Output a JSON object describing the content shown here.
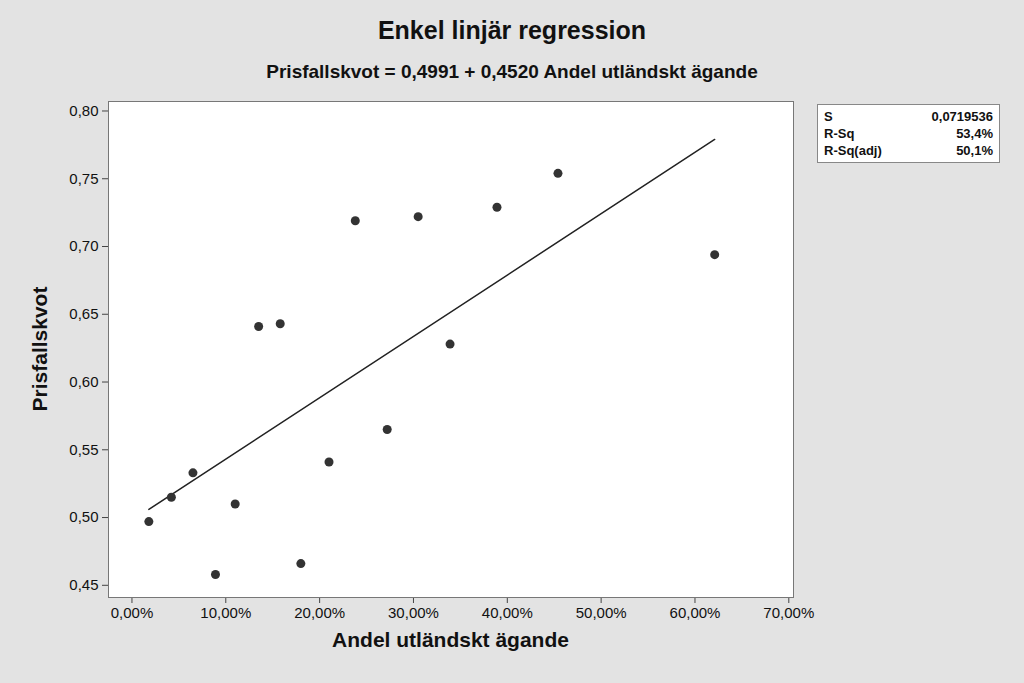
{
  "chart_data": {
    "type": "scatter",
    "title": "Enkel linjär regression",
    "subtitle": "Prisfallskvot = 0,4991 + 0,4520 Andel utländskt ägande",
    "x_label": "Andel utländskt ägande",
    "y_label": "Prisfallskvot",
    "x": [
      1.8,
      4.2,
      6.5,
      8.9,
      11.0,
      13.5,
      15.8,
      18.0,
      21.0,
      23.8,
      27.2,
      30.5,
      33.9,
      38.9,
      45.4,
      62.1
    ],
    "values": [
      0.497,
      0.515,
      0.533,
      0.458,
      0.51,
      0.641,
      0.643,
      0.466,
      0.541,
      0.719,
      0.565,
      0.722,
      0.628,
      0.729,
      0.754,
      0.694
    ],
    "color": "#333333",
    "marker": "circle",
    "fit_line": {
      "x": [
        1.8,
        62.1
      ],
      "values": [
        0.506,
        0.779
      ],
      "color": "#222222",
      "line_style": "solid"
    },
    "stats": [
      {
        "label": "S",
        "value": "0,0719536"
      },
      {
        "label": "R-Sq",
        "value": "53,4%"
      },
      {
        "label": "R-Sq(adj)",
        "value": "50,1%"
      }
    ],
    "xlim": [
      -2.5,
      70.5
    ],
    "ylim": [
      0.441,
      0.807
    ],
    "xticks": [
      {
        "value": 0,
        "label": "0,00%"
      },
      {
        "value": 10,
        "label": "10,00%"
      },
      {
        "value": 20,
        "label": "20,00%"
      },
      {
        "value": 30,
        "label": "30,00%"
      },
      {
        "value": 40,
        "label": "40,00%"
      },
      {
        "value": 50,
        "label": "50,00%"
      },
      {
        "value": 60,
        "label": "60,00%"
      },
      {
        "value": 70,
        "label": "70,00%"
      }
    ],
    "yticks": [
      {
        "value": 0.45,
        "label": "0,45"
      },
      {
        "value": 0.5,
        "label": "0,50"
      },
      {
        "value": 0.55,
        "label": "0,55"
      },
      {
        "value": 0.6,
        "label": "0,60"
      },
      {
        "value": 0.65,
        "label": "0,65"
      },
      {
        "value": 0.7,
        "label": "0,70"
      },
      {
        "value": 0.75,
        "label": "0,75"
      },
      {
        "value": 0.8,
        "label": "0,80"
      }
    ],
    "grid": false
  }
}
